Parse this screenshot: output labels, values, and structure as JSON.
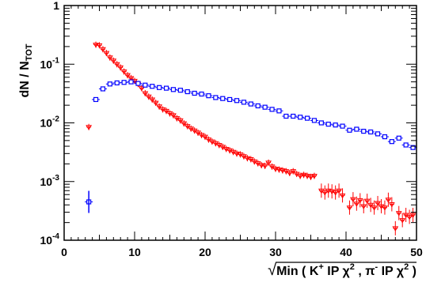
{
  "chart_data": {
    "type": "scatter",
    "title": "",
    "xlabel": {
      "radical": "√",
      "prefix": "Min ( K",
      "k_sup": "+",
      "mid1": " IP  χ",
      "chi_sup1": "2",
      "mid2": " , π",
      "pi_sup": "-",
      "mid3": " IP  χ",
      "chi_sup2": "2",
      "suffix": " )"
    },
    "ylabel": {
      "main": "dN / N",
      "sub": "TOT"
    },
    "xlim": [
      0,
      50
    ],
    "ylim": [
      0.0001,
      1
    ],
    "yscale": "log",
    "grid": false,
    "x_ticks": [
      "0",
      "10",
      "20",
      "30",
      "40",
      "50"
    ],
    "y_ticks": [
      {
        "base": "10",
        "exp": "-4"
      },
      {
        "base": "10",
        "exp": "-3"
      },
      {
        "base": "10",
        "exp": "-2"
      },
      {
        "base": "10",
        "exp": "-1"
      },
      {
        "base": "1",
        "exp": ""
      }
    ],
    "series": [
      {
        "color": "#ff0000",
        "marker": "open-triangle-down",
        "x": [
          3.5,
          4.5,
          5,
          5.5,
          6,
          6.5,
          7,
          7.5,
          8,
          8.5,
          9,
          9.5,
          10,
          10.5,
          11,
          11.5,
          12,
          12.5,
          13,
          13.5,
          14,
          14.5,
          15,
          15.5,
          16,
          16.5,
          17,
          17.5,
          18,
          18.5,
          19,
          19.5,
          20,
          20.5,
          21,
          21.5,
          22,
          22.5,
          23,
          23.5,
          24,
          24.5,
          25,
          25.5,
          26,
          26.5,
          27,
          27.5,
          28,
          28.5,
          29,
          29.5,
          30,
          30.5,
          31,
          31.5,
          32,
          32.5,
          33,
          33.5,
          34,
          34.5,
          35,
          35.5,
          36.5,
          37,
          37.5,
          38,
          38.5,
          39,
          39.5,
          40.5,
          41,
          41.5,
          42,
          42.5,
          43,
          43.5,
          44,
          44.5,
          45,
          45.5,
          46,
          46.5,
          47,
          47.5,
          48,
          48.5,
          49,
          49.5
        ],
        "y": [
          0.0085,
          0.215,
          0.21,
          0.18,
          0.155,
          0.13,
          0.115,
          0.1,
          0.088,
          0.075,
          0.065,
          0.058,
          0.052,
          0.046,
          0.039,
          0.032,
          0.028,
          0.025,
          0.022,
          0.019,
          0.017,
          0.016,
          0.0145,
          0.0135,
          0.012,
          0.011,
          0.0098,
          0.0088,
          0.008,
          0.0074,
          0.0068,
          0.0062,
          0.0058,
          0.0052,
          0.0048,
          0.0045,
          0.0042,
          0.0039,
          0.0036,
          0.0034,
          0.0032,
          0.003,
          0.0029,
          0.0027,
          0.0025,
          0.0024,
          0.0022,
          0.00205,
          0.0019,
          0.00185,
          0.0021,
          0.0018,
          0.00165,
          0.0016,
          0.00155,
          0.0015,
          0.0014,
          0.0015,
          0.00135,
          0.00125,
          0.0013,
          0.00125,
          0.0012,
          0.00125,
          0.0007,
          0.00065,
          0.0007,
          0.00068,
          0.00065,
          0.0007,
          0.00058,
          0.00036,
          0.0005,
          0.00042,
          0.00048,
          0.00038,
          0.00047,
          0.0004,
          0.00036,
          0.00043,
          0.00038,
          0.00036,
          0.00049,
          0.00041,
          0.00016,
          0.00029,
          0.00022,
          0.00027,
          0.00025,
          0.00027
        ]
      },
      {
        "color": "#0000ff",
        "marker": "open-square",
        "x": [
          3.5,
          4.5,
          5.5,
          6.5,
          7.5,
          8.5,
          9.5,
          10.5,
          11.5,
          12.5,
          13.5,
          14.5,
          15.5,
          16.5,
          17.5,
          18.5,
          19.5,
          20.5,
          21.5,
          22.5,
          23.5,
          24.5,
          25.5,
          26.5,
          27.5,
          28.5,
          29.5,
          30.5,
          31.5,
          32.5,
          33.5,
          34.5,
          35.5,
          36.5,
          37.5,
          38.5,
          39.5,
          40.5,
          41.5,
          42.5,
          43.5,
          44.5,
          45.5,
          46.5,
          47.5,
          48.5,
          49.5
        ],
        "y": [
          0.00045,
          0.025,
          0.038,
          0.046,
          0.048,
          0.049,
          0.05,
          0.047,
          0.044,
          0.042,
          0.04,
          0.039,
          0.037,
          0.036,
          0.034,
          0.032,
          0.031,
          0.029,
          0.027,
          0.026,
          0.025,
          0.024,
          0.0225,
          0.021,
          0.0195,
          0.0185,
          0.017,
          0.016,
          0.013,
          0.013,
          0.0125,
          0.012,
          0.011,
          0.01,
          0.0095,
          0.0092,
          0.0088,
          0.0075,
          0.0078,
          0.0072,
          0.007,
          0.0065,
          0.0058,
          0.0048,
          0.0055,
          0.0042,
          0.0038
        ]
      }
    ]
  }
}
